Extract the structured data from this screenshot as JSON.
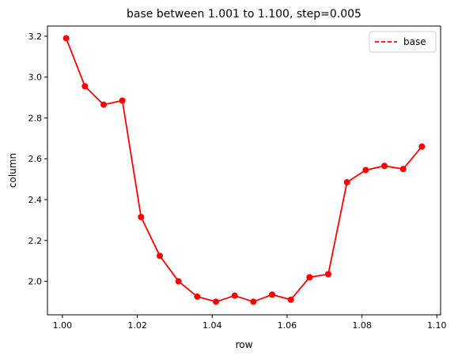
{
  "chart_data": {
    "type": "line",
    "title": "base between 1.001 to 1.100, step=0.005",
    "xlabel": "row",
    "ylabel": "column",
    "xlim": [
      0.996,
      1.101
    ],
    "ylim": [
      1.836,
      3.25
    ],
    "x_ticks": [
      1.0,
      1.02,
      1.04,
      1.06,
      1.08,
      1.1
    ],
    "x_tick_labels": [
      "1.00",
      "1.02",
      "1.04",
      "1.06",
      "1.08",
      "1.10"
    ],
    "y_ticks": [
      2.0,
      2.2,
      2.4,
      2.6,
      2.8,
      3.0,
      3.2
    ],
    "y_tick_labels": [
      "2.0",
      "2.2",
      "2.4",
      "2.6",
      "2.8",
      "3.0",
      "3.2"
    ],
    "grid": false,
    "legend": {
      "position": "top-right",
      "entries": [
        {
          "label": "base",
          "style": "dashed"
        }
      ]
    },
    "series": [
      {
        "name": "base",
        "color": "#ff0000",
        "x": [
          1.001,
          1.006,
          1.011,
          1.016,
          1.021,
          1.026,
          1.031,
          1.036,
          1.041,
          1.046,
          1.051,
          1.056,
          1.061,
          1.066,
          1.071,
          1.076,
          1.081,
          1.086,
          1.091,
          1.096
        ],
        "y": [
          3.19,
          2.955,
          2.865,
          2.885,
          2.315,
          2.125,
          2.0,
          1.925,
          1.9,
          1.93,
          1.9,
          1.935,
          1.91,
          2.02,
          2.035,
          2.485,
          2.545,
          2.565,
          2.55,
          2.66
        ]
      }
    ]
  }
}
